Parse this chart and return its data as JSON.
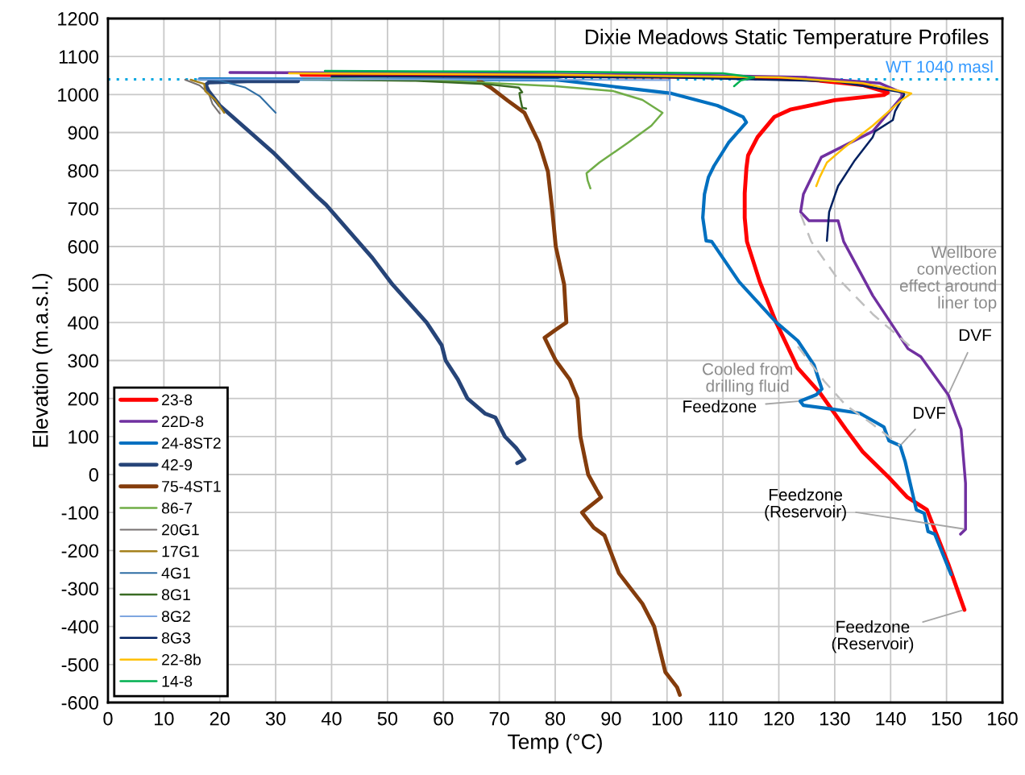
{
  "chart_data": {
    "type": "line",
    "title": "Dixie Meadows Static Temperature Profiles",
    "xlabel": "Temp (°C)",
    "ylabel": "Elevation (m.a.s.l.)",
    "xlim": [
      0,
      160
    ],
    "xticks": [
      0,
      10,
      20,
      30,
      40,
      50,
      60,
      70,
      80,
      90,
      100,
      110,
      120,
      130,
      140,
      150,
      160
    ],
    "ylim": [
      -600,
      1200
    ],
    "yticks": [
      -600,
      -500,
      -400,
      -300,
      -200,
      -100,
      0,
      100,
      200,
      300,
      400,
      500,
      600,
      700,
      800,
      900,
      1000,
      1100,
      1200
    ],
    "grid": true,
    "legend": "bottom left",
    "line_style": "solid",
    "ref_lines": [
      {
        "axis": "y",
        "value": 1040,
        "label": "WT 1040 masl",
        "color": "#00a6e0",
        "line_style": "dotted"
      }
    ],
    "series": [
      {
        "name": "23-8",
        "color": "#ff0000",
        "x": [
          34.6,
          60,
          90,
          110,
          125,
          135,
          139.5,
          138.8,
          130,
          122,
          119.2,
          116.2,
          114.5,
          114.2,
          113.9,
          113.9,
          114.3,
          116.6,
          119.5,
          123.4,
          127.3,
          132,
          135,
          139.7,
          143,
          146.5,
          150.3,
          153.2
        ],
        "values": [
          1052,
          1050,
          1048,
          1046,
          1040,
          1025,
          1005,
          999,
          985,
          960,
          941,
          888,
          840,
          806,
          740,
          676,
          613,
          507,
          401,
          280,
          216,
          119,
          60,
          -8,
          -60,
          -93,
          -235,
          -356
        ]
      },
      {
        "name": "22D-8",
        "color": "#7030a0",
        "x": [
          21.8,
          60,
          100,
          125,
          138,
          142,
          142,
          136.8,
          127.6,
          124.4,
          123.9,
          125.4,
          130.6,
          131.6,
          136.8,
          143.1,
          145.4,
          150.3,
          152.6,
          153.4,
          153.4,
          152.5
        ],
        "values": [
          1058,
          1056,
          1052,
          1045,
          1030,
          1005,
          994,
          903,
          835,
          738,
          691,
          668,
          668,
          613,
          471,
          331,
          310,
          210,
          119,
          -23,
          -144,
          -157
        ]
      },
      {
        "name": "24-8ST2",
        "color": "#0070c0",
        "x": [
          16.4,
          50,
          80,
          100.8,
          109,
          113.6,
          114.2,
          111,
          108.4,
          107.4,
          106.7,
          106.4,
          107,
          108,
          112.9,
          119.5,
          123.4,
          126.3,
          127.7,
          126.7,
          123.8,
          124.4,
          129.6,
          134.5,
          138.8,
          139.7,
          141.7,
          142.6,
          144.6,
          146,
          146.7,
          147.9,
          150.8
        ],
        "values": [
          1041,
          1040,
          1039,
          1003,
          971,
          941,
          927,
          873,
          812,
          782,
          738,
          676,
          615,
          613,
          507,
          401,
          352,
          288,
          225,
          210,
          193,
          182,
          172,
          161,
          125,
          89,
          76,
          34,
          -93,
          -102,
          -150,
          -157,
          -263
        ]
      },
      {
        "name": "42-9",
        "color": "#264478",
        "x": [
          34,
          25,
          18,
          17.5,
          18,
          20,
          29.8,
          37.5,
          39,
          47.3,
          50.9,
          57,
          59.7,
          60.4,
          62.6,
          64.3,
          67.5,
          69.3,
          71,
          73,
          74.5,
          73.2
        ],
        "values": [
          1035,
          1035,
          1032,
          1025,
          1009,
          971,
          844,
          730,
          710,
          570,
          500,
          400,
          340,
          300,
          250,
          200,
          160,
          150,
          100,
          70,
          40,
          30
        ]
      },
      {
        "name": "75-4ST1",
        "color": "#843c0c",
        "x": [
          66.3,
          68.5,
          71.5,
          74.5,
          77.1,
          78.7,
          79.4,
          80.1,
          81.6,
          82,
          80,
          78.1,
          80.1,
          82.6,
          84,
          84.5,
          85.9,
          87.4,
          88.2,
          84.8,
          86.9,
          88.8,
          91.4,
          95.6,
          97.7,
          99.7,
          101.8,
          102.3
        ],
        "values": [
          1037,
          1018,
          984,
          952,
          873,
          797,
          706,
          600,
          500,
          400,
          380,
          360,
          300,
          250,
          200,
          100,
          0,
          -40,
          -60,
          -100,
          -140,
          -160,
          -260,
          -340,
          -400,
          -520,
          -560,
          -580
        ]
      },
      {
        "name": "86-7",
        "color": "#70ad47",
        "x": [
          40,
          60,
          80,
          90.4,
          95.6,
          99.2,
          97.2,
          93,
          87.9,
          85.6,
          85.8,
          86.3
        ],
        "values": [
          1042,
          1036,
          1022,
          1009,
          986,
          952,
          918,
          873,
          821,
          793,
          774,
          753
        ]
      },
      {
        "name": "20G1",
        "color": "#767171",
        "x": [
          13.8,
          16.4,
          18,
          18.7,
          20
        ],
        "values": [
          1039,
          1024,
          1003,
          975,
          950
        ]
      },
      {
        "name": "17G1",
        "color": "#a5811d",
        "x": [
          14.8,
          17.2,
          17.4,
          19.2,
          20.8
        ],
        "values": [
          1039,
          1028,
          1009,
          986,
          952
        ]
      },
      {
        "name": "4G1",
        "color": "#2e6da4",
        "x": [
          16.4,
          20,
          24.6,
          27.2,
          30
        ],
        "values": [
          1041,
          1037,
          1018,
          995,
          952
        ]
      },
      {
        "name": "8G1",
        "color": "#3a6b24",
        "x": [
          35,
          55,
          67.3,
          73.5,
          74.1,
          73.6,
          73.8,
          74.1,
          74.8
        ],
        "values": [
          1040,
          1036,
          1028,
          1018,
          1006,
          1004,
          986,
          965,
          963
        ]
      },
      {
        "name": "8G2",
        "color": "#7ea6e0",
        "x": [
          16,
          60,
          100.5,
          100.5
        ],
        "values": [
          1040,
          1040,
          1038,
          985
        ]
      },
      {
        "name": "8G3",
        "color": "#002060",
        "x": [
          40,
          100,
          130,
          142.4,
          142.4,
          140.8,
          140.4,
          137.2,
          136.8,
          133.6,
          130.6,
          129,
          128.6
        ],
        "values": [
          1048,
          1045,
          1035,
          1005,
          999,
          956,
          933,
          903,
          888,
          827,
          759,
          691,
          615
        ]
      },
      {
        "name": "22-8b",
        "color": "#ffc000",
        "x": [
          32.4,
          80,
          120,
          135,
          143.7,
          142,
          136.8,
          131.6,
          128.6,
          127.3,
          126.7
        ],
        "values": [
          1056,
          1052,
          1045,
          1030,
          1003,
          986,
          918,
          859,
          821,
          782,
          759
        ]
      },
      {
        "name": "14-8",
        "color": "#00b050",
        "x": [
          38.8,
          80,
          110,
          115.6,
          113.2,
          112
        ],
        "values": [
          1062,
          1060,
          1056,
          1045,
          1037,
          1022
        ]
      },
      {
        "color": "#bfbfbf",
        "line_style": "dashed",
        "x": [
          123.9,
          125.8,
          130.2,
          136.8,
          144
        ],
        "values": [
          685,
          613,
          522,
          422,
          331
        ]
      },
      {
        "color": "#bfbfbf",
        "line_style": "dashed",
        "x": [
          123.4,
          128.1,
          132,
          136.8,
          141.7
        ],
        "values": [
          337,
          246,
          182,
          132,
          76
        ]
      }
    ],
    "annotations": [
      {
        "text": "Wellbore\nconvection\neffect around\nliner top",
        "x": 133,
        "y": 480
      },
      {
        "text": "DVF",
        "x": 150.3,
        "y": 210
      },
      "Cooled from\ndrilling fluid",
      {
        "text": "Feedzone",
        "x": 123.8,
        "y": 193
      },
      {
        "text": "DVF",
        "x": 141.7,
        "y": 76
      },
      {
        "text": "Feedzone\n(Reservoir)",
        "x": 153.4,
        "y": -144
      },
      {
        "text": "Feedzone\n(Reservoir)",
        "x": 153.2,
        "y": -356
      }
    ]
  }
}
